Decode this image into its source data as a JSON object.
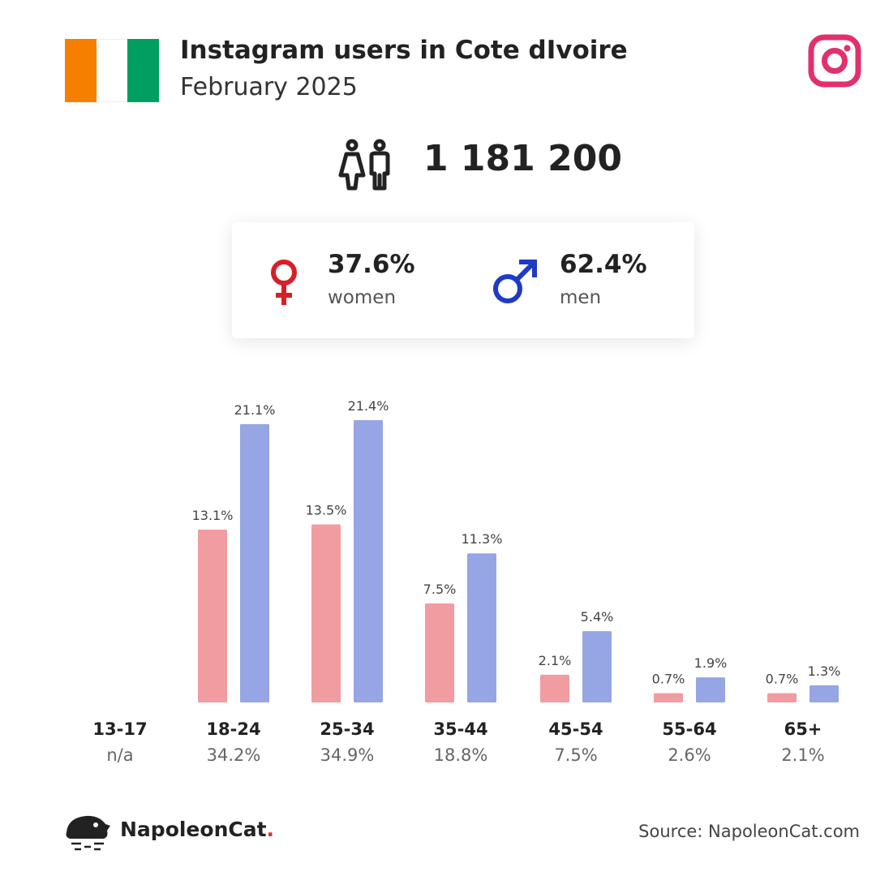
{
  "header": {
    "title": "Instagram users in Cote dIvoire",
    "subtitle": "February 2025",
    "flag_colors": [
      "#f77f00",
      "#ffffff",
      "#009e60"
    ],
    "social_icon": "instagram-icon"
  },
  "total": {
    "value": "1 181 200",
    "icon": "users-icon"
  },
  "gender": {
    "women": {
      "percent": "37.6%",
      "label": "women",
      "icon": "female-symbol-icon",
      "color": "#d62028"
    },
    "men": {
      "percent": "62.4%",
      "label": "men",
      "icon": "male-symbol-icon",
      "color": "#1e3bc4"
    }
  },
  "chart_data": {
    "type": "bar",
    "categories": [
      "13-17",
      "18-24",
      "25-34",
      "35-44",
      "45-54",
      "55-64",
      "65+"
    ],
    "category_totals": [
      "n/a",
      "34.2%",
      "34.9%",
      "18.8%",
      "7.5%",
      "2.6%",
      "2.1%"
    ],
    "series": [
      {
        "color": "#f09ca0",
        "values": [
          null,
          13.1,
          13.5,
          7.5,
          2.1,
          0.7,
          0.7
        ],
        "labels": [
          "",
          "13.1%",
          "13.5%",
          "7.5%",
          "2.1%",
          "0.7%",
          "0.7%"
        ]
      },
      {
        "color": "#96a5e3",
        "values": [
          null,
          21.1,
          21.4,
          11.3,
          5.4,
          1.9,
          1.3
        ],
        "labels": [
          "",
          "21.1%",
          "21.4%",
          "11.3%",
          "5.4%",
          "1.9%",
          "1.3%"
        ]
      }
    ],
    "ylim": [
      0,
      21.4
    ],
    "grid": false,
    "legend": "none"
  },
  "footer": {
    "brand": "NapoleonCat",
    "brand_dot": ".",
    "source": "Source: NapoleonCat.com"
  }
}
